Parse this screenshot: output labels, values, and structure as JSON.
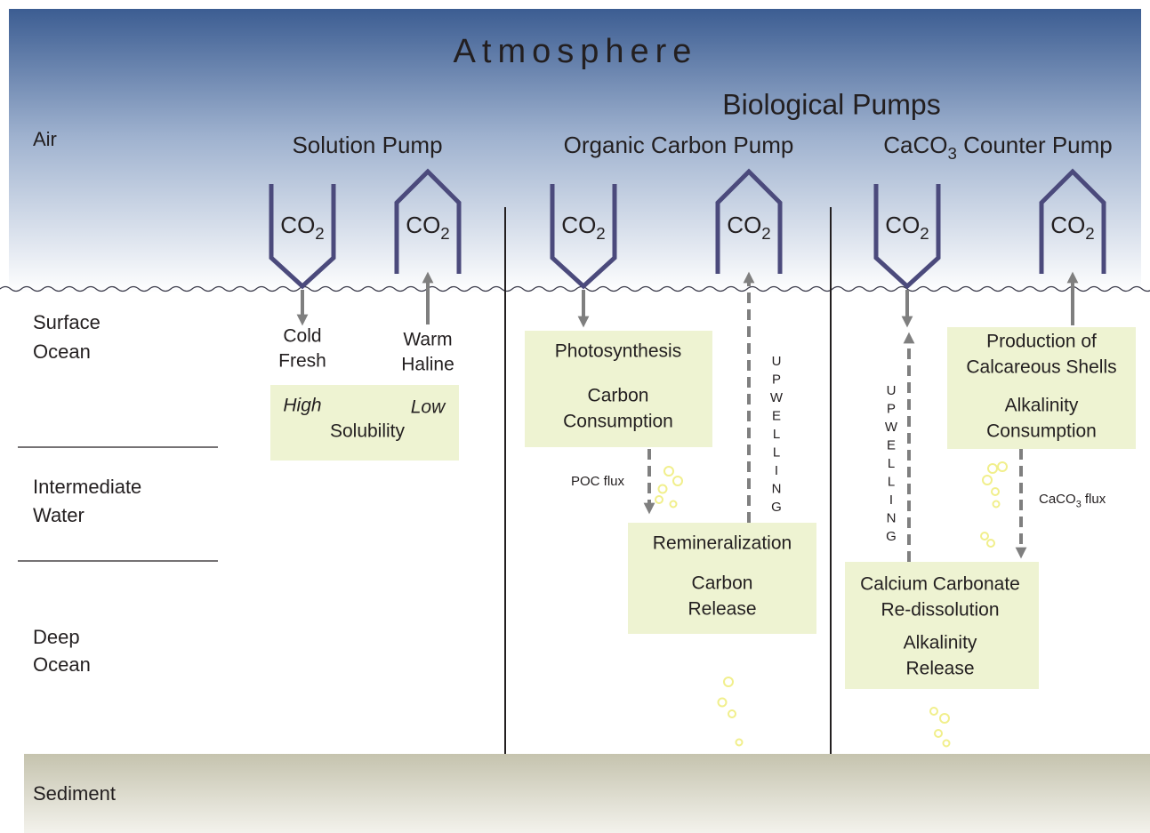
{
  "title": "Atmosphere",
  "biological_pumps": "Biological Pumps",
  "layers": {
    "air": "Air",
    "surface": [
      "Surface",
      "Ocean"
    ],
    "intermediate": [
      "Intermediate",
      "Water"
    ],
    "deep": [
      "Deep",
      "Ocean"
    ],
    "sediment": "Sediment"
  },
  "pumps": [
    {
      "name": "Solution Pump",
      "gases": [
        {
          "base": "CO",
          "sub": "2"
        },
        {
          "base": "CO",
          "sub": "2"
        }
      ],
      "down_label": [
        "Cold",
        "Fresh"
      ],
      "up_label": [
        "Warm",
        "Haline"
      ],
      "box": {
        "left": "High",
        "right": "Low",
        "text": "Solubility"
      }
    },
    {
      "name": "Organic Carbon Pump",
      "gases": [
        {
          "base": "CO",
          "sub": "2"
        },
        {
          "base": "CO",
          "sub": "2"
        }
      ],
      "upper_box": {
        "title": [
          "Photosynthesis"
        ],
        "detail": [
          "Carbon",
          "Consumption"
        ]
      },
      "flux": "POC flux",
      "upwelling": "UPWELLING",
      "lower_box": {
        "title": [
          "Remineralization"
        ],
        "detail": [
          "Carbon",
          "Release"
        ]
      }
    },
    {
      "name": {
        "base": "CaCO",
        "sub": "3",
        "rest": " Counter Pump"
      },
      "gases": [
        {
          "base": "CO",
          "sub": "2"
        },
        {
          "base": "CO",
          "sub": "2"
        }
      ],
      "upper_box": {
        "title": [
          "Production of",
          "Calcareous Shells"
        ],
        "detail": [
          "Alkalinity",
          "Consumption"
        ]
      },
      "flux": {
        "base": "CaCO",
        "sub": "3",
        "rest": " flux"
      },
      "upwelling": "UPWELLING",
      "lower_box": {
        "title": [
          "Calcium Carbonate",
          "Re-dissolution"
        ],
        "detail": [
          "Alkalinity",
          "Release"
        ]
      }
    }
  ]
}
